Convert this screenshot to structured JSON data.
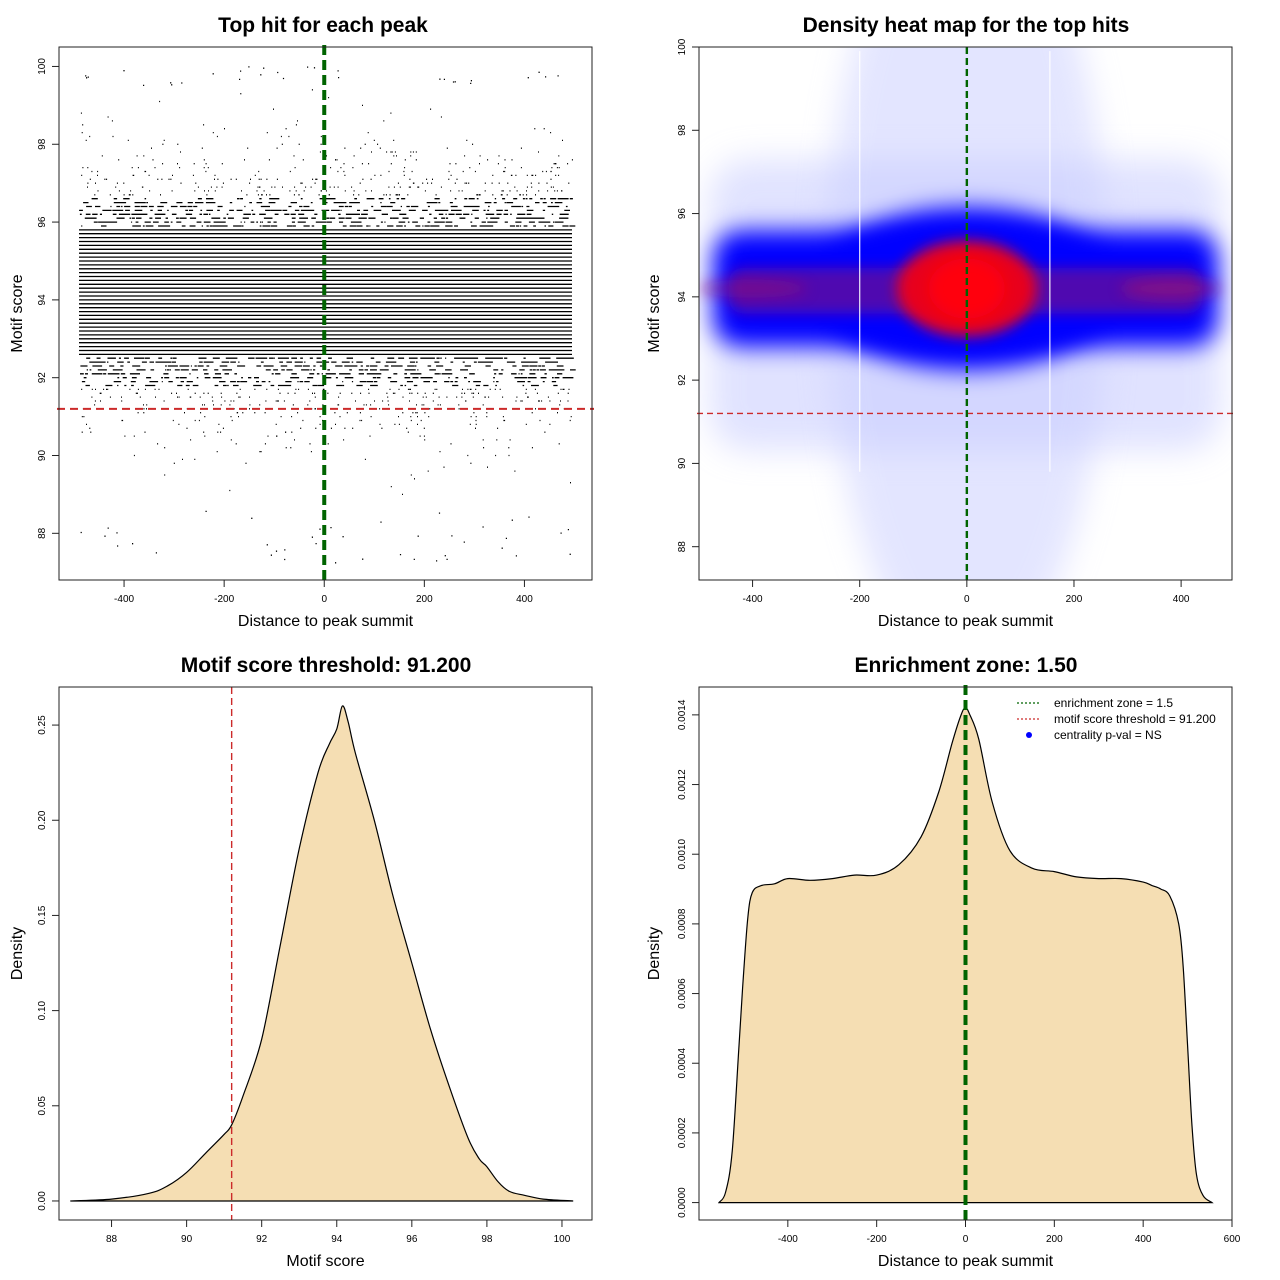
{
  "chart_data": [
    {
      "type": "scatter",
      "title": "Top hit for each peak",
      "xlabel": "Distance to peak summit",
      "ylabel": "Motif score",
      "xlim": [
        -530,
        535
      ],
      "ylim": [
        86.8,
        100.5
      ],
      "xticks": [
        "-400",
        "-200",
        "0",
        "200",
        "400"
      ],
      "xtick_values": [
        -400,
        -200,
        0,
        200,
        400
      ],
      "yticks": [
        "88",
        "90",
        "92",
        "94",
        "96",
        "98",
        "100"
      ],
      "ytick_values": [
        88,
        90,
        92,
        94,
        96,
        98,
        100
      ],
      "point_x_range": [
        -490,
        495
      ],
      "score_step": 0.1,
      "score_mean": 94.2,
      "score_sd": 1.55,
      "vline": {
        "x": 0,
        "color": "#006400",
        "style": "dashed-thick"
      },
      "hline": {
        "y": 91.2,
        "color": "#cc2a2a",
        "style": "dashed"
      }
    },
    {
      "type": "heatmap",
      "title": "Density heat map for the top hits",
      "xlabel": "Distance to peak summit",
      "ylabel": "Motif score",
      "xlim": [
        -500,
        495
      ],
      "ylim": [
        87.2,
        100.0
      ],
      "xticks": [
        "-400",
        "-200",
        "0",
        "200",
        "400"
      ],
      "xtick_values": [
        -400,
        -200,
        0,
        200,
        400
      ],
      "yticks": [
        "88",
        "90",
        "92",
        "94",
        "96",
        "98",
        "100"
      ],
      "ytick_values": [
        88,
        90,
        92,
        94,
        96,
        98,
        100
      ],
      "center_score": 94.2,
      "peak_x": 0,
      "band_edges_x": [
        -200,
        155
      ],
      "colors": [
        "#ffffff",
        "#0000ff",
        "#e8001e"
      ],
      "vline": {
        "x": 0,
        "color": "#006400",
        "style": "dashed"
      },
      "hline": {
        "y": 91.2,
        "color": "#cc2a2a",
        "style": "dashed"
      }
    },
    {
      "type": "area",
      "title": "Motif score threshold: 91.200",
      "xlabel": "Motif score",
      "ylabel": "Density",
      "xlim": [
        86.6,
        100.8
      ],
      "ylim": [
        -0.01,
        0.27
      ],
      "xticks": [
        "88",
        "90",
        "92",
        "94",
        "96",
        "98",
        "100"
      ],
      "xtick_values": [
        88,
        90,
        92,
        94,
        96,
        98,
        100
      ],
      "yticks": [
        "0.00",
        "0.05",
        "0.10",
        "0.15",
        "0.20",
        "0.25"
      ],
      "ytick_values": [
        0,
        0.05,
        0.1,
        0.15,
        0.2,
        0.25
      ],
      "x": [
        86.9,
        88.0,
        89.0,
        89.5,
        90.0,
        90.5,
        91.0,
        91.2,
        91.5,
        92.0,
        92.5,
        93.0,
        93.5,
        93.8,
        94.0,
        94.15,
        94.3,
        94.5,
        95.0,
        95.5,
        96.0,
        96.5,
        97.0,
        97.5,
        97.8,
        98.0,
        98.3,
        98.6,
        99.0,
        99.5,
        100.3
      ],
      "y": [
        0.0,
        0.001,
        0.004,
        0.008,
        0.015,
        0.025,
        0.035,
        0.04,
        0.055,
        0.085,
        0.135,
        0.185,
        0.225,
        0.24,
        0.248,
        0.26,
        0.252,
        0.235,
        0.2,
        0.16,
        0.125,
        0.09,
        0.06,
        0.033,
        0.022,
        0.018,
        0.01,
        0.005,
        0.003,
        0.001,
        0.0
      ],
      "fill": "#f5deb3",
      "vline": {
        "x": 91.2,
        "color": "#cc2a2a",
        "style": "dashed"
      }
    },
    {
      "type": "area",
      "title": "Enrichment zone: 1.50",
      "xlabel": "Distance to peak summit",
      "ylabel": "Density",
      "xlim": [
        -600,
        600
      ],
      "ylim": [
        -5e-05,
        0.00148
      ],
      "xticks": [
        "-400",
        "-200",
        "0",
        "200",
        "400",
        "600"
      ],
      "xtick_values": [
        -400,
        -200,
        0,
        200,
        400,
        600
      ],
      "yticks": [
        "0.0000",
        "0.0002",
        "0.0004",
        "0.0006",
        "0.0008",
        "0.0010",
        "0.0012",
        "0.0014"
      ],
      "ytick_values": [
        0,
        0.0002,
        0.0004,
        0.0006,
        0.0008,
        0.001,
        0.0012,
        0.0014
      ],
      "x": [
        -555,
        -540,
        -525,
        -510,
        -500,
        -490,
        -480,
        -460,
        -430,
        -400,
        -350,
        -300,
        -250,
        -200,
        -150,
        -100,
        -60,
        -30,
        -10,
        0,
        10,
        30,
        60,
        100,
        150,
        200,
        250,
        300,
        350,
        400,
        420,
        440,
        460,
        480,
        490,
        500,
        510,
        520,
        535,
        555
      ],
      "y": [
        0.0,
        3e-05,
        0.00015,
        0.00045,
        0.00065,
        0.00082,
        0.00089,
        0.00091,
        0.000915,
        0.00093,
        0.000925,
        0.00093,
        0.00094,
        0.00094,
        0.00097,
        0.00105,
        0.00118,
        0.00132,
        0.0014,
        0.00142,
        0.0014,
        0.00133,
        0.00115,
        0.00101,
        0.00096,
        0.00095,
        0.000935,
        0.00093,
        0.00093,
        0.00092,
        0.00091,
        0.0009,
        0.00088,
        0.0008,
        0.00068,
        0.00045,
        0.00022,
        8e-05,
        2e-05,
        0.0
      ],
      "fill": "#f5deb3",
      "vline": {
        "x": 0,
        "color": "#006400",
        "style": "dashed-thick"
      },
      "legend": {
        "position": "top-right",
        "entries": [
          {
            "label": "enrichment zone = 1.5",
            "color": "#006400",
            "kind": "dotted-line"
          },
          {
            "label": "motif score threshold = 91.200",
            "color": "#cc2a2a",
            "kind": "dotted-line"
          },
          {
            "label": "centrality p-val = NS",
            "color": "#0000ff",
            "kind": "point"
          }
        ]
      }
    }
  ]
}
